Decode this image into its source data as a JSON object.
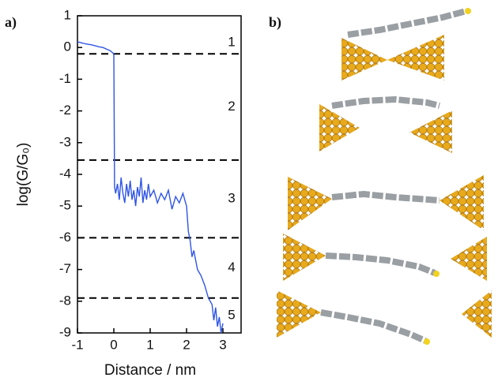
{
  "panel_a_label": "a)",
  "panel_b_label": "b)",
  "chart_data": {
    "type": "line",
    "x_label": "Distance / nm",
    "y_label": "log(G/G₀)",
    "xlim": [
      -1,
      3.5
    ],
    "ylim": [
      -9,
      1
    ],
    "xticks": [
      -1,
      0,
      1,
      2,
      3
    ],
    "yticks": [
      1,
      0,
      -1,
      -2,
      -3,
      -4,
      -5,
      -6,
      -7,
      -8,
      -9
    ],
    "reference_lines": [
      -0.2,
      -3.55,
      -6.0,
      -7.9
    ],
    "region_labels": [
      1,
      2,
      3,
      4,
      5
    ],
    "series": [
      {
        "color": "#2f55e6",
        "x": [
          -1,
          -0.9,
          -0.8,
          -0.7,
          -0.6,
          -0.5,
          -0.4,
          -0.3,
          -0.2,
          -0.1,
          -0.05,
          0.0,
          0.02,
          0.05,
          0.1,
          0.15,
          0.2,
          0.25,
          0.3,
          0.35,
          0.4,
          0.45,
          0.5,
          0.55,
          0.6,
          0.65,
          0.7,
          0.75,
          0.8,
          0.85,
          0.9,
          0.95,
          1.0,
          1.1,
          1.2,
          1.3,
          1.4,
          1.5,
          1.6,
          1.7,
          1.8,
          1.9,
          2.0,
          2.05,
          2.1,
          2.15,
          2.2,
          2.3,
          2.4,
          2.5,
          2.6,
          2.7,
          2.75,
          2.8,
          2.85,
          2.9,
          2.95,
          3.0
        ],
        "values": [
          0.18,
          0.15,
          0.12,
          0.1,
          0.08,
          0.05,
          0.02,
          0.0,
          -0.05,
          -0.1,
          -0.15,
          -0.2,
          -4.4,
          -4.6,
          -4.3,
          -4.8,
          -4.1,
          -4.6,
          -4.9,
          -4.3,
          -4.7,
          -4.2,
          -4.8,
          -4.5,
          -5.0,
          -4.4,
          -4.7,
          -4.1,
          -4.9,
          -4.5,
          -4.8,
          -4.3,
          -4.7,
          -4.5,
          -4.9,
          -4.6,
          -4.8,
          -4.5,
          -5.1,
          -4.7,
          -4.9,
          -4.6,
          -5.0,
          -5.8,
          -6.1,
          -6.6,
          -6.4,
          -7.0,
          -7.2,
          -7.5,
          -7.9,
          -8.1,
          -8.6,
          -8.2,
          -8.8,
          -8.5,
          -9.0,
          -8.7
        ]
      }
    ]
  }
}
